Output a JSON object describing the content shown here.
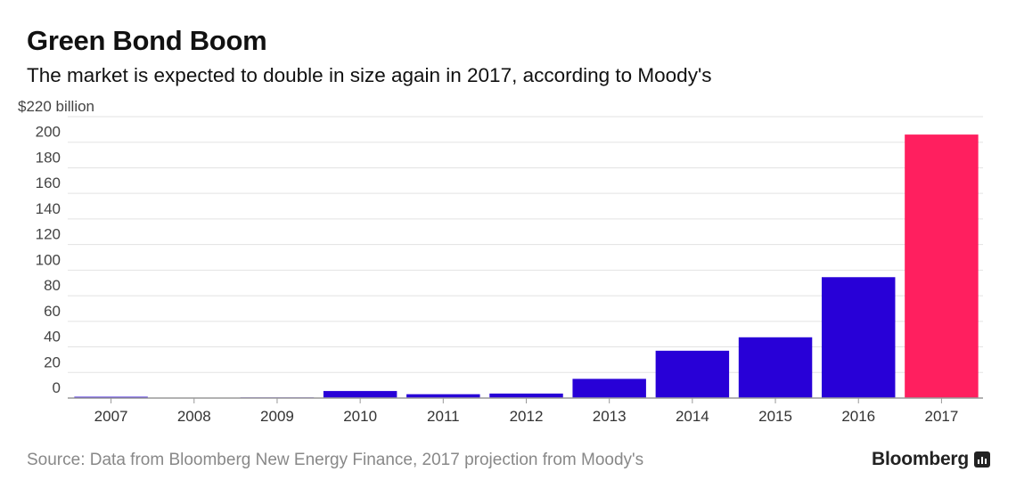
{
  "title": "Green Bond Boom",
  "subtitle": "The market is expected to double in size again in 2017, according to Moody's",
  "source": "Source: Data from Bloomberg New Energy Finance, 2017 projection from Moody's",
  "brand": "Bloomberg",
  "chart_data": {
    "type": "bar",
    "categories": [
      "2007",
      "2008",
      "2009",
      "2010",
      "2011",
      "2012",
      "2013",
      "2014",
      "2015",
      "2016",
      "2017"
    ],
    "values": [
      1,
      0.2,
      0.5,
      5.5,
      3,
      3.5,
      15,
      37,
      47.5,
      94.5,
      206
    ],
    "projected": [
      false,
      false,
      false,
      false,
      false,
      false,
      false,
      false,
      false,
      false,
      true
    ],
    "ylim": [
      0,
      220
    ],
    "yticks": [
      0,
      20,
      40,
      60,
      80,
      100,
      120,
      140,
      160,
      180,
      200,
      220
    ],
    "ytick_labels": [
      "0",
      "20",
      "40",
      "60",
      "80",
      "100",
      "120",
      "140",
      "160",
      "180",
      "200",
      "$220 billion"
    ],
    "colors": {
      "actual": "#2800d7",
      "projection": "#ff1f5f",
      "grid": "#e3e3e3",
      "axis": "#999999"
    },
    "grid": true
  }
}
